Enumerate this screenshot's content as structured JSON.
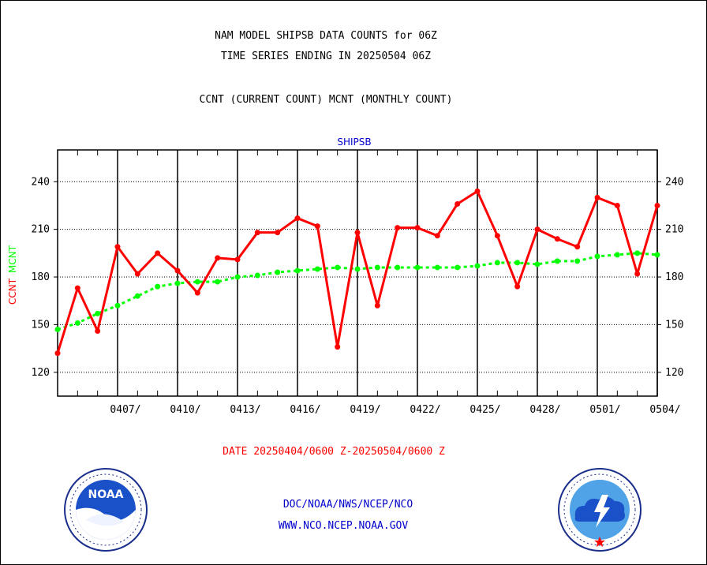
{
  "header": {
    "line1": "NAM MODEL SHIPSB DATA COUNTS for 06Z",
    "line2": "TIME SERIES ENDING IN 20250504 06Z",
    "line3": "CCNT (CURRENT COUNT) MCNT (MONTHLY COUNT)"
  },
  "footer": {
    "date_range": "DATE 20250404/0600 Z-20250504/0600 Z",
    "org_path": "DOC/NOAA/NWS/NCEP/NCO",
    "website": "WWW.NCO.NCEP.NOAA.GOV"
  },
  "logos": {
    "noaa": "NOAA",
    "nws": "NATIONAL WEATHER SERVICE"
  },
  "chart_data": {
    "type": "line",
    "title": "SHIPSB",
    "ylabel_ccnt": "CCNT",
    "ylabel_mcnt": "MCNT",
    "ylim": [
      105,
      260
    ],
    "yticks": [
      120,
      150,
      180,
      210,
      240
    ],
    "xlim": [
      0,
      30
    ],
    "xtick_labels": [
      "0407/",
      "0410/",
      "0413/",
      "0416/",
      "0419/",
      "0422/",
      "0425/",
      "0428/",
      "0501/",
      "0504/"
    ],
    "grid": true,
    "colors": {
      "ccnt": "#ff0000",
      "mcnt": "#00ff00",
      "title": "#0000cc",
      "footer_red": "#ff0000",
      "footer_blue": "#0000cc"
    },
    "series": [
      {
        "name": "CCNT",
        "x": [
          0,
          1,
          2,
          3,
          4,
          5,
          6,
          7,
          8,
          9,
          10,
          11,
          12,
          13,
          14,
          15,
          16,
          17,
          18,
          19,
          20,
          21,
          22,
          23,
          24,
          25,
          26,
          27,
          28,
          29,
          30
        ],
        "values": [
          132,
          173,
          146,
          199,
          182,
          195,
          184,
          170,
          192,
          191,
          208,
          208,
          217,
          212,
          136,
          208,
          162,
          211,
          211,
          206,
          226,
          234,
          206,
          174,
          210,
          204,
          199,
          230,
          225,
          182,
          225
        ]
      },
      {
        "name": "MCNT",
        "x": [
          0,
          1,
          2,
          3,
          4,
          5,
          6,
          7,
          8,
          9,
          10,
          11,
          12,
          13,
          14,
          15,
          16,
          17,
          18,
          19,
          20,
          21,
          22,
          23,
          24,
          25,
          26,
          27,
          28,
          29,
          30
        ],
        "values": [
          147,
          151,
          157,
          162,
          168,
          174,
          176,
          177,
          177,
          180,
          181,
          183,
          184,
          185,
          186,
          185,
          186,
          186,
          186,
          186,
          186,
          187,
          189,
          189,
          188,
          190,
          190,
          193,
          194,
          195,
          194
        ]
      }
    ]
  }
}
